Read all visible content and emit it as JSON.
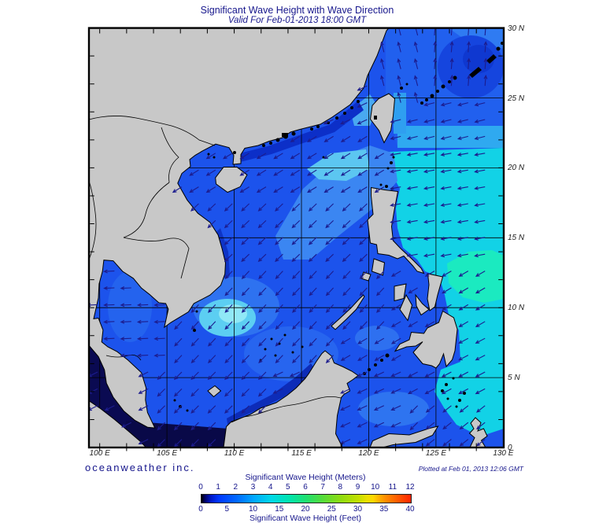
{
  "title": "Significant Wave Height with Wave Direction",
  "subtitle": "Valid For Feb-01-2013 18:00 GMT",
  "branding": {
    "logo": "oceanweather inc.",
    "plotted": "Plotted at Feb 01, 2013 12:06 GMT"
  },
  "axes": {
    "lon_labels": [
      "100 E",
      "105 E",
      "110 E",
      "115 E",
      "120 E",
      "125 E",
      "130 E"
    ],
    "lat_labels": [
      "30 N",
      "25 N",
      "20 N",
      "15 N",
      "10 N",
      "5 N",
      "0"
    ]
  },
  "legend": {
    "title_meters": "Significant Wave Height (Meters)",
    "title_feet": "Significant Wave Height (Feet)",
    "meters_ticks": [
      "0",
      "1",
      "2",
      "3",
      "4",
      "5",
      "6",
      "7",
      "8",
      "9",
      "10",
      "11",
      "12"
    ],
    "feet_ticks": [
      "0",
      "5",
      "10",
      "15",
      "20",
      "25",
      "30",
      "35",
      "40"
    ],
    "palette": [
      "#000000",
      "#0038ff",
      "#0068ff",
      "#00a8ff",
      "#00d8e8",
      "#00e4b0",
      "#20e070",
      "#90dc10",
      "#ece000",
      "#ffa800",
      "#ff6000",
      "#ff2400"
    ]
  },
  "colors": {
    "title_navy": "#16168c",
    "land": "#c8c8c8",
    "coastline": "#000000",
    "ocean_base": "#1c53ec",
    "pacific_cyan": "#12d2e6",
    "green_patch": "#1beac0",
    "calm_dark": "#0a0a52",
    "arrow": "#1c1c8e"
  },
  "map": {
    "arrow_default": [
      -0.7,
      0.7
    ],
    "arrow_field": [
      {
        "name": "ne-pacific-north",
        "b": [
          124,
          130.6,
          25.5,
          30.2
        ],
        "d": [
          0.08,
          -1
        ]
      },
      {
        "name": "east-china-sea",
        "b": [
          120.5,
          124,
          24.5,
          30.2
        ],
        "d": [
          -0.25,
          -0.95
        ]
      },
      {
        "name": "philippine-sea-n",
        "b": [
          121.4,
          130.6,
          21.5,
          25.5
        ],
        "d": [
          -1,
          0.25
        ]
      },
      {
        "name": "philippine-sea",
        "b": [
          121.6,
          130.6,
          13.5,
          21.5
        ],
        "d": [
          -1,
          0.18
        ]
      },
      {
        "name": "philippine-sea-s",
        "b": [
          121.8,
          130.6,
          8.5,
          13.5
        ],
        "d": [
          -0.85,
          0.5
        ]
      },
      {
        "name": "pacific-low",
        "b": [
          123.5,
          130.6,
          3.8,
          8.5
        ],
        "d": [
          -0.85,
          0.45
        ]
      },
      {
        "name": "pacific-equator",
        "b": [
          124.5,
          130.6,
          0,
          3.8
        ],
        "d": [
          -0.75,
          0.6
        ]
      },
      {
        "name": "gulf-of-thailand",
        "b": [
          98.5,
          105.6,
          5.5,
          13.8
        ],
        "d": [
          -1,
          0.05
        ]
      },
      {
        "name": "malacca",
        "b": [
          98.5,
          104.5,
          0,
          5.5
        ],
        "d": [
          -0.9,
          0.45
        ]
      },
      {
        "name": "south-scs",
        "b": [
          104.5,
          113,
          0,
          5.5
        ],
        "d": [
          -0.7,
          0.7
        ]
      },
      {
        "name": "celebes",
        "b": [
          113,
          123.5,
          0,
          5.5
        ],
        "d": [
          -0.9,
          0.42
        ]
      },
      {
        "name": "sulu",
        "b": [
          118,
          122.5,
          5.5,
          9
        ],
        "d": [
          -0.85,
          0.5
        ]
      },
      {
        "name": "moro-gulf",
        "b": [
          122.5,
          126.5,
          4.5,
          8.5
        ],
        "d": [
          -0.75,
          0.6
        ]
      },
      {
        "name": "scs-south-central",
        "b": [
          103,
          121.8,
          5.5,
          13
        ],
        "d": [
          -0.68,
          0.73
        ]
      },
      {
        "name": "scs-central",
        "b": [
          105,
          121.6,
          13,
          18.5
        ],
        "d": [
          -0.72,
          0.69
        ]
      },
      {
        "name": "scs-north",
        "b": [
          105,
          121.8,
          18.5,
          23
        ],
        "d": [
          -0.85,
          0.52
        ]
      },
      {
        "name": "taiwan-strait",
        "b": [
          117,
          121.4,
          23,
          26
        ],
        "d": [
          -0.9,
          0.42
        ]
      }
    ]
  }
}
